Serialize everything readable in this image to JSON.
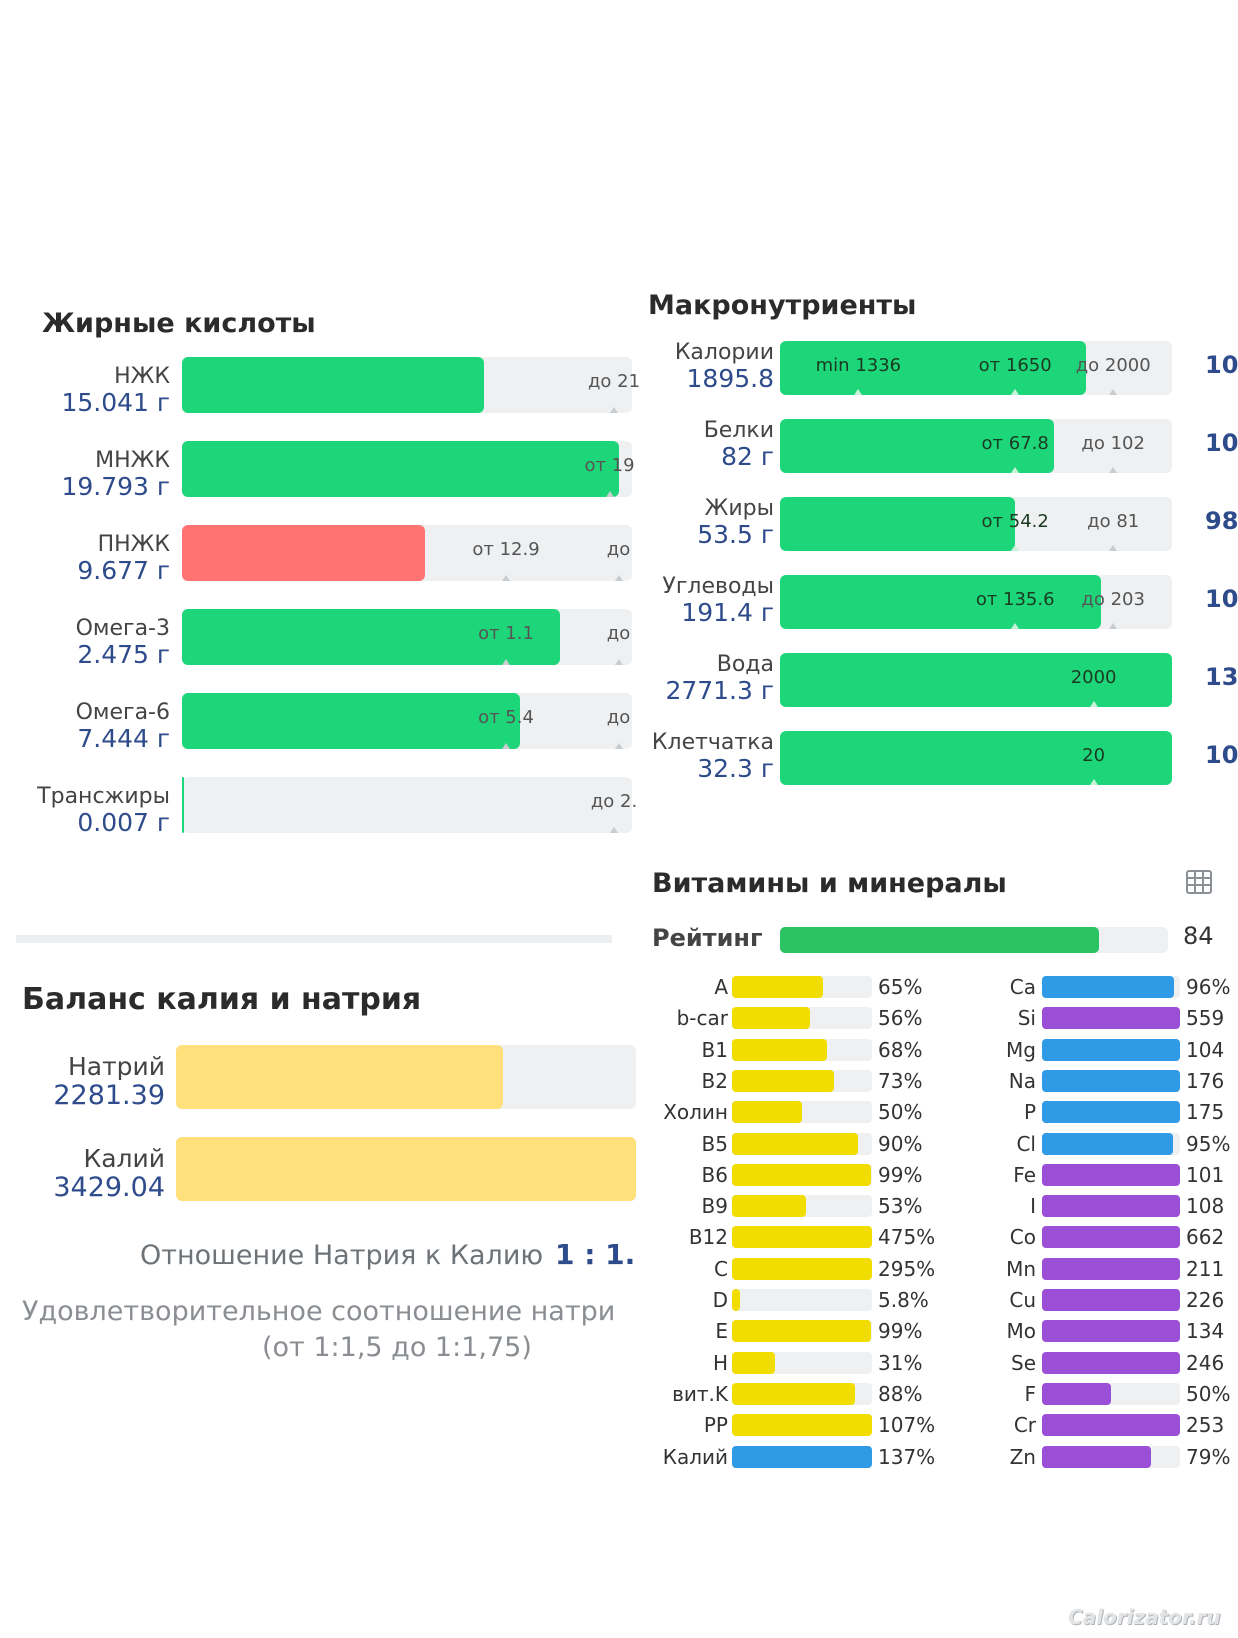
{
  "fatty": {
    "title": "Жирные кислоты",
    "rows": [
      {
        "name": "НЖК",
        "value": "15.041 г",
        "fill": 0.67,
        "color": "green",
        "marker": "до 21",
        "marker_pos": 0.96
      },
      {
        "name": "МНЖК",
        "value": "19.793 г",
        "fill": 0.97,
        "color": "green",
        "marker": "от 19",
        "marker_pos": 0.95
      },
      {
        "name": "ПНЖК",
        "value": "9.677 г",
        "fill": 0.54,
        "color": "red",
        "marker": "от 12.9",
        "marker_pos": 0.72,
        "marker2": "до",
        "marker2_pos": 0.97
      },
      {
        "name": "Омега-3",
        "value": "2.475 г",
        "fill": 0.84,
        "color": "green",
        "marker": "от 1.1",
        "marker_pos": 0.72,
        "marker2": "до",
        "marker2_pos": 0.97
      },
      {
        "name": "Омега-6",
        "value": "7.444 г",
        "fill": 0.75,
        "color": "green",
        "marker": "от 5.4",
        "marker_pos": 0.72,
        "marker2": "до",
        "marker2_pos": 0.97
      },
      {
        "name": "Трансжиры",
        "value": "0.007 г",
        "fill": 0.005,
        "color": "green",
        "marker": "до 2.",
        "marker_pos": 0.96
      }
    ]
  },
  "balance": {
    "title": "Баланс калия и натрия",
    "rows": [
      {
        "name": "Натрий",
        "value": "2281.39",
        "fill": 0.71
      },
      {
        "name": "Калий",
        "value": "3429.04",
        "fill": 1.0
      }
    ],
    "ratio_label": "Отношение Натрия к Калию",
    "ratio_value": "1 : 1.",
    "note_line1": "Удовлетворительное соотношение натри",
    "note_line2": "(от 1:1,5 до 1:1,75)"
  },
  "macro": {
    "title": "Макронутриенты",
    "rows": [
      {
        "name": "Калории",
        "value": "1895.8",
        "fill": 0.78,
        "pct": "10",
        "markers": [
          {
            "t": "min 1336",
            "p": 0.2
          },
          {
            "t": "от 1650",
            "p": 0.6
          },
          {
            "t": "до 2000",
            "p": 0.85
          }
        ]
      },
      {
        "name": "Белки",
        "value": "82 г",
        "fill": 0.7,
        "pct": "10",
        "markers": [
          {
            "t": "от 67.8",
            "p": 0.6
          },
          {
            "t": "до 102",
            "p": 0.85
          }
        ]
      },
      {
        "name": "Жиры",
        "value": "53.5 г",
        "fill": 0.6,
        "pct": "98",
        "markers": [
          {
            "t": "от 54.2",
            "p": 0.6
          },
          {
            "t": "до 81",
            "p": 0.85
          }
        ]
      },
      {
        "name": "Углеводы",
        "value": "191.4 г",
        "fill": 0.82,
        "pct": "10",
        "markers": [
          {
            "t": "от 135.6",
            "p": 0.6
          },
          {
            "t": "до 203",
            "p": 0.85
          }
        ]
      },
      {
        "name": "Вода",
        "value": "2771.3 г",
        "fill": 1.0,
        "pct": "13",
        "markers": [
          {
            "t": "2000",
            "p": 0.8
          }
        ]
      },
      {
        "name": "Клетчатка",
        "value": "32.3 г",
        "fill": 1.0,
        "pct": "10",
        "markers": [
          {
            "t": "20",
            "p": 0.8
          }
        ]
      }
    ]
  },
  "vitamins": {
    "title": "Витамины и минералы",
    "icon": "table-icon",
    "rating_label": "Рейтинг",
    "rating_value": "84",
    "rating_fill": 0.84,
    "left": [
      {
        "name": "A",
        "pct": "65%",
        "fill": 0.65,
        "color": "yellow"
      },
      {
        "name": "b-car",
        "pct": "56%",
        "fill": 0.56,
        "color": "yellow"
      },
      {
        "name": "B1",
        "pct": "68%",
        "fill": 0.68,
        "color": "yellow"
      },
      {
        "name": "B2",
        "pct": "73%",
        "fill": 0.73,
        "color": "yellow"
      },
      {
        "name": "Холин",
        "pct": "50%",
        "fill": 0.5,
        "color": "yellow"
      },
      {
        "name": "B5",
        "pct": "90%",
        "fill": 0.9,
        "color": "yellow"
      },
      {
        "name": "B6",
        "pct": "99%",
        "fill": 0.99,
        "color": "yellow"
      },
      {
        "name": "B9",
        "pct": "53%",
        "fill": 0.53,
        "color": "yellow"
      },
      {
        "name": "B12",
        "pct": "475%",
        "fill": 1.0,
        "color": "yellow"
      },
      {
        "name": "C",
        "pct": "295%",
        "fill": 1.0,
        "color": "yellow"
      },
      {
        "name": "D",
        "pct": "5.8%",
        "fill": 0.058,
        "color": "yellow"
      },
      {
        "name": "E",
        "pct": "99%",
        "fill": 0.99,
        "color": "yellow"
      },
      {
        "name": "H",
        "pct": "31%",
        "fill": 0.31,
        "color": "yellow"
      },
      {
        "name": "вит.K",
        "pct": "88%",
        "fill": 0.88,
        "color": "yellow"
      },
      {
        "name": "PP",
        "pct": "107%",
        "fill": 1.0,
        "color": "yellow"
      },
      {
        "name": "Калий",
        "pct": "137%",
        "fill": 1.0,
        "color": "blue"
      }
    ],
    "right": [
      {
        "name": "Ca",
        "pct": "96%",
        "fill": 0.96,
        "color": "blue"
      },
      {
        "name": "Si",
        "pct": "559",
        "fill": 1.0,
        "color": "purple"
      },
      {
        "name": "Mg",
        "pct": "104",
        "fill": 1.0,
        "color": "blue"
      },
      {
        "name": "Na",
        "pct": "176",
        "fill": 1.0,
        "color": "blue"
      },
      {
        "name": "P",
        "pct": "175",
        "fill": 1.0,
        "color": "blue"
      },
      {
        "name": "Cl",
        "pct": "95%",
        "fill": 0.95,
        "color": "blue"
      },
      {
        "name": "Fe",
        "pct": "101",
        "fill": 1.0,
        "color": "purple"
      },
      {
        "name": "I",
        "pct": "108",
        "fill": 1.0,
        "color": "purple"
      },
      {
        "name": "Co",
        "pct": "662",
        "fill": 1.0,
        "color": "purple"
      },
      {
        "name": "Mn",
        "pct": "211",
        "fill": 1.0,
        "color": "purple"
      },
      {
        "name": "Cu",
        "pct": "226",
        "fill": 1.0,
        "color": "purple"
      },
      {
        "name": "Mo",
        "pct": "134",
        "fill": 1.0,
        "color": "purple"
      },
      {
        "name": "Se",
        "pct": "246",
        "fill": 1.0,
        "color": "purple"
      },
      {
        "name": "F",
        "pct": "50%",
        "fill": 0.5,
        "color": "purple"
      },
      {
        "name": "Cr",
        "pct": "253",
        "fill": 1.0,
        "color": "purple"
      },
      {
        "name": "Zn",
        "pct": "79%",
        "fill": 0.79,
        "color": "purple"
      }
    ]
  },
  "watermark": "Calorizator.ru"
}
